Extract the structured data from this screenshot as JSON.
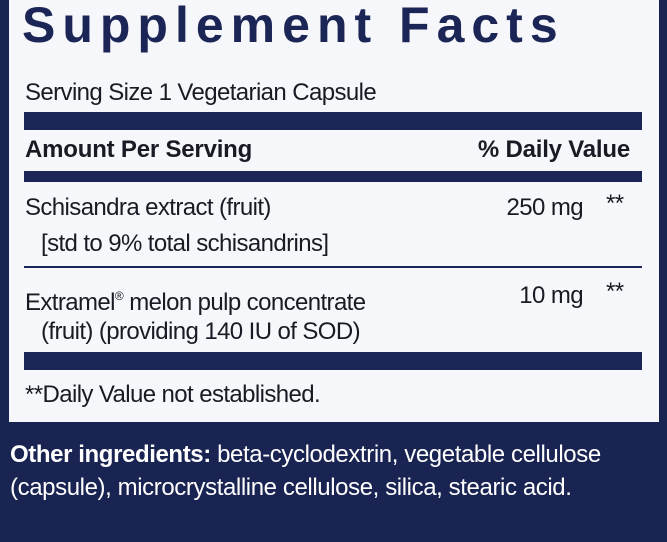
{
  "title": "Supplement Facts",
  "serving_size": "Serving Size 1 Vegetarian Capsule",
  "header": {
    "amount": "Amount Per Serving",
    "dv": "% Daily Value"
  },
  "rows": [
    {
      "name": "Schisandra extract (fruit)",
      "detail": "[std to 9% total schisandrins]",
      "amount": "250 mg",
      "dv": "**"
    },
    {
      "name": "Extramel",
      "reg": "®",
      "name_rest": " melon pulp concentrate",
      "detail": "(fruit) (providing 140 IU of SOD)",
      "amount": "10 mg",
      "dv": "**"
    }
  ],
  "footnote": "**Daily Value not established.",
  "other": {
    "label": "Other ingredients:",
    "text": " beta-cyclodextrin, vegetable cellulose (capsule), microcrystalline cellulose, silica, stearic acid."
  },
  "colors": {
    "navy": "#1c2656",
    "background": "#1a2452",
    "panel": "#f6f7fa"
  }
}
